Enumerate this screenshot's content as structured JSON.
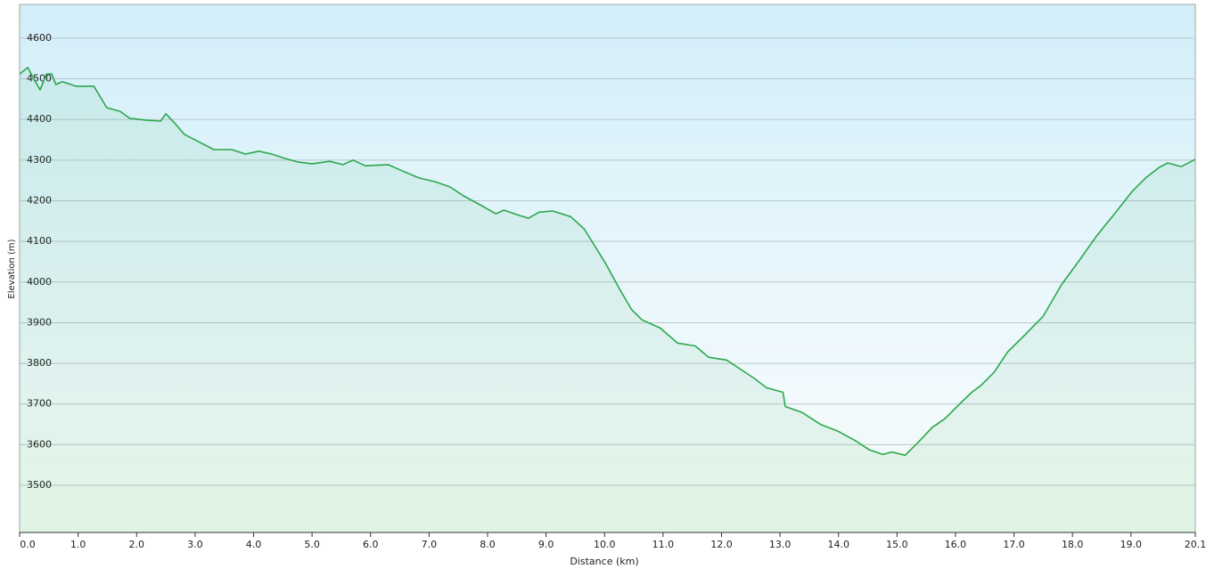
{
  "chart_data": {
    "type": "line",
    "xlabel": "Distance  (km)",
    "ylabel": "Elevation (m)",
    "x": [
      0,
      0.14,
      0.24,
      0.35,
      0.46,
      0.55,
      0.62,
      0.73,
      0.96,
      1.27,
      1.49,
      1.72,
      1.88,
      2.18,
      2.41,
      2.5,
      2.64,
      2.82,
      3.09,
      3.32,
      3.63,
      3.86,
      4.09,
      4.31,
      4.54,
      4.77,
      5.0,
      5.3,
      5.53,
      5.7,
      5.91,
      6.3,
      6.52,
      6.83,
      7.1,
      7.36,
      7.59,
      7.9,
      8.14,
      8.28,
      8.5,
      8.7,
      8.88,
      9.11,
      9.42,
      9.65,
      9.85,
      10.03,
      10.26,
      10.46,
      10.64,
      10.95,
      11.25,
      11.55,
      11.78,
      12.09,
      12.32,
      12.55,
      12.77,
      13.05,
      13.09,
      13.38,
      13.69,
      13.99,
      14.3,
      14.53,
      14.76,
      14.91,
      15.14,
      15.37,
      15.6,
      15.82,
      16.05,
      16.28,
      16.43,
      16.66,
      16.89,
      17.2,
      17.5,
      17.81,
      18.11,
      18.41,
      18.72,
      19.02,
      19.25,
      19.48,
      19.63,
      19.86,
      20.1
    ],
    "series": [
      {
        "name": "Elevation",
        "color": "#2ba84a",
        "values": [
          4512,
          4528,
          4501,
          4473,
          4512,
          4512,
          4486,
          4493,
          4482,
          4482,
          4429,
          4420,
          4403,
          4398,
          4396,
          4414,
          4393,
          4363,
          4343,
          4326,
          4326,
          4315,
          4322,
          4315,
          4304,
          4295,
          4291,
          4297,
          4289,
          4300,
          4286,
          4289,
          4275,
          4256,
          4247,
          4234,
          4212,
          4188,
          4168,
          4177,
          4166,
          4157,
          4172,
          4175,
          4161,
          4131,
          4085,
          4043,
          3982,
          3933,
          3907,
          3887,
          3850,
          3843,
          3815,
          3808,
          3786,
          3764,
          3740,
          3729,
          3694,
          3679,
          3650,
          3633,
          3609,
          3587,
          3576,
          3582,
          3574,
          3607,
          3642,
          3664,
          3697,
          3729,
          3745,
          3778,
          3828,
          3872,
          3916,
          3993,
          4052,
          4113,
          4168,
          4223,
          4256,
          4282,
          4293,
          4284,
          4302
        ]
      }
    ],
    "xlim": [
      0,
      20.1
    ],
    "xticks": [
      {
        "value": 0,
        "label": "0.0"
      },
      {
        "value": 1,
        "label": "1.0"
      },
      {
        "value": 2,
        "label": "2.0"
      },
      {
        "value": 3,
        "label": "3.0"
      },
      {
        "value": 4,
        "label": "4.0"
      },
      {
        "value": 5,
        "label": "5.0"
      },
      {
        "value": 6,
        "label": "6.0"
      },
      {
        "value": 7,
        "label": "7.0"
      },
      {
        "value": 8,
        "label": "8.0"
      },
      {
        "value": 9,
        "label": "9.0"
      },
      {
        "value": 10,
        "label": "10.0"
      },
      {
        "value": 11,
        "label": "11.0"
      },
      {
        "value": 12,
        "label": "12.0"
      },
      {
        "value": 13,
        "label": "13.0"
      },
      {
        "value": 14,
        "label": "14.0"
      },
      {
        "value": 15,
        "label": "15.0"
      },
      {
        "value": 16,
        "label": "16.0"
      },
      {
        "value": 17,
        "label": "17.0"
      },
      {
        "value": 18,
        "label": "18.0"
      },
      {
        "value": 19,
        "label": "19.0"
      },
      {
        "value": 20.1,
        "label": "20.1"
      }
    ],
    "ylim": [
      3384,
      4683
    ],
    "yticks": [
      3500,
      3600,
      3700,
      3800,
      3900,
      4000,
      4100,
      4200,
      4300,
      4400,
      4500,
      4600
    ],
    "grid": true
  }
}
